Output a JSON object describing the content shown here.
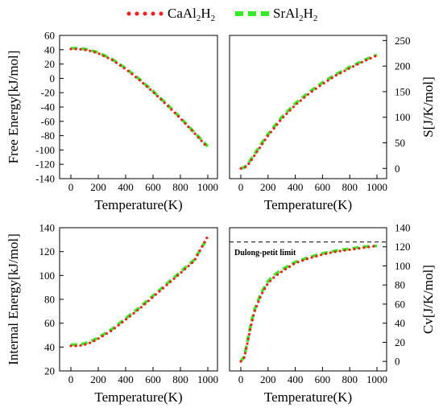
{
  "legend": {
    "position": "top",
    "entries": [
      {
        "base": "CaAl",
        "sub": "2",
        "tail": "H",
        "sub2": "2",
        "color": "#ff1a1a",
        "style": "dotted"
      },
      {
        "base": "SrAl",
        "sub": "2",
        "tail": "H",
        "sub2": "2",
        "color": "#33ee22",
        "style": "dashed"
      }
    ]
  },
  "chart_data": [
    {
      "type": "line",
      "id": "free-energy",
      "xlabel": "Temperature(K)",
      "ylabel": "Free Energy[kJ/mol]",
      "y_axis_side": "left",
      "xlim": [
        0,
        1000
      ],
      "ylim": [
        -140,
        60
      ],
      "xticks": [
        0,
        200,
        400,
        600,
        800,
        1000
      ],
      "yticks": [
        -140,
        -120,
        -100,
        -80,
        -60,
        -40,
        -20,
        0,
        20,
        40,
        60
      ],
      "x": [
        0,
        50,
        100,
        150,
        200,
        300,
        400,
        500,
        600,
        700,
        800,
        900,
        1000
      ],
      "series": [
        {
          "name": "CaAl2H2",
          "values": [
            41,
            41,
            40,
            38,
            35,
            26,
            13,
            -2,
            -19,
            -37,
            -56,
            -76,
            -97
          ]
        },
        {
          "name": "SrAl2H2",
          "values": [
            42,
            42,
            41,
            39,
            36,
            27,
            14,
            -1,
            -18,
            -36,
            -55,
            -75,
            -95
          ]
        }
      ]
    },
    {
      "type": "line",
      "id": "entropy",
      "xlabel": "Temperature(K)",
      "ylabel": "S[J/K/mol]",
      "y_axis_side": "right",
      "xlim": [
        0,
        1000
      ],
      "ylim": [
        -20,
        260
      ],
      "xticks": [
        0,
        200,
        400,
        600,
        800,
        1000
      ],
      "yticks": [
        0,
        50,
        100,
        150,
        200,
        250
      ],
      "x": [
        0,
        25,
        50,
        100,
        150,
        200,
        300,
        400,
        500,
        600,
        700,
        800,
        900,
        1000
      ],
      "series": [
        {
          "name": "CaAl2H2",
          "values": [
            0,
            1,
            6,
            25,
            45,
            64,
            97,
            124,
            146,
            165,
            182,
            196,
            209,
            221
          ]
        },
        {
          "name": "SrAl2H2",
          "values": [
            0,
            2,
            8,
            28,
            48,
            67,
            100,
            127,
            149,
            168,
            184,
            198,
            211,
            222
          ]
        }
      ]
    },
    {
      "type": "line",
      "id": "internal-energy",
      "xlabel": "Temperature(K)",
      "ylabel": "Internal Energy[kJ/mol]",
      "y_axis_side": "left",
      "xlim": [
        0,
        1000
      ],
      "ylim": [
        20,
        140
      ],
      "xticks": [
        0,
        200,
        400,
        600,
        800,
        1000
      ],
      "yticks": [
        20,
        40,
        60,
        80,
        100,
        120,
        140
      ],
      "x": [
        0,
        50,
        100,
        150,
        200,
        300,
        400,
        500,
        600,
        700,
        800,
        900,
        1000
      ],
      "series": [
        {
          "name": "CaAl2H2",
          "values": [
            41,
            41,
            42,
            44,
            47,
            54,
            63,
            72,
            82,
            92,
            102,
            112,
            133
          ]
        },
        {
          "name": "SrAl2H2",
          "values": [
            42,
            42,
            43,
            45,
            48,
            55,
            64,
            73,
            83,
            93,
            103,
            113,
            132
          ]
        }
      ]
    },
    {
      "type": "line",
      "id": "heat-capacity",
      "xlabel": "Temperature(K)",
      "ylabel": "Cv[J/K/mol]",
      "y_axis_side": "right",
      "xlim": [
        0,
        1000
      ],
      "ylim": [
        -10,
        140
      ],
      "xticks": [
        0,
        200,
        400,
        600,
        800,
        1000
      ],
      "yticks": [
        0,
        20,
        40,
        60,
        80,
        100,
        120,
        140
      ],
      "x": [
        0,
        25,
        50,
        75,
        100,
        150,
        200,
        250,
        300,
        400,
        500,
        600,
        700,
        800,
        900,
        1000
      ],
      "series": [
        {
          "name": "CaAl2H2",
          "values": [
            0,
            4,
            20,
            38,
            52,
            70,
            82,
            89,
            94,
            103,
            108,
            112,
            115,
            117,
            119,
            121
          ]
        },
        {
          "name": "SrAl2H2",
          "values": [
            0,
            5,
            22,
            40,
            54,
            72,
            84,
            91,
            96,
            104,
            109,
            113,
            116,
            118,
            120,
            121
          ]
        }
      ],
      "reference_line": {
        "value": 125,
        "label": "Dulong-petit limit"
      }
    }
  ]
}
